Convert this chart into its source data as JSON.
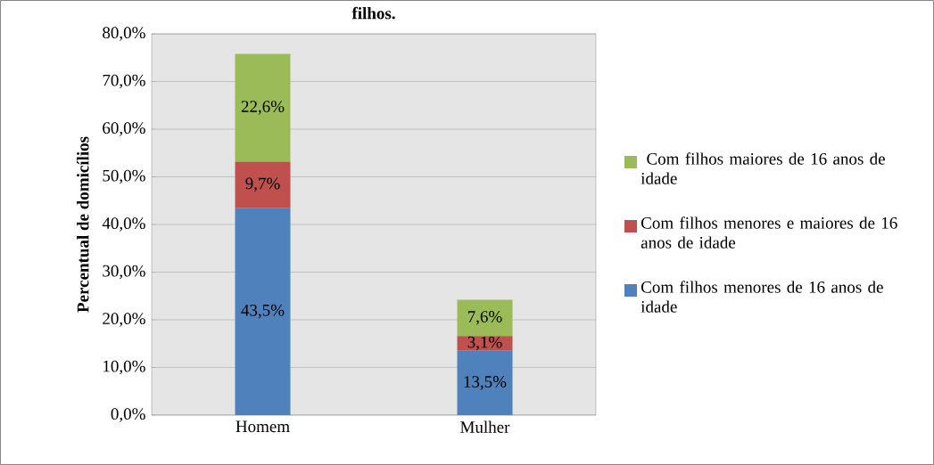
{
  "chart_data": {
    "type": "bar",
    "title": "filhos.",
    "ylabel": "Percentual de domicílios",
    "stacked": true,
    "categories": [
      "Homem",
      "Mulher"
    ],
    "series": [
      {
        "name": "Com filhos menores de 16 anos de idade",
        "color": "#4f81bd",
        "values": [
          43.5,
          13.5
        ],
        "value_labels": [
          "43,5%",
          "13,5%"
        ]
      },
      {
        "name": "Com filhos menores e maiores de 16 anos de idade",
        "color": "#c0504d",
        "values": [
          9.7,
          3.1
        ],
        "value_labels": [
          "9,7%",
          "3,1%"
        ]
      },
      {
        "name": " Com filhos maiores de 16 anos de idade",
        "color": "#9bbb59",
        "values": [
          22.6,
          7.6
        ],
        "value_labels": [
          "22,6%",
          "7,6%"
        ]
      }
    ],
    "ylim": [
      0,
      80
    ],
    "yticks": [
      {
        "value": 0,
        "label": "0,0%"
      },
      {
        "value": 10,
        "label": "10,0%"
      },
      {
        "value": 20,
        "label": "20,0%"
      },
      {
        "value": 30,
        "label": "30,0%"
      },
      {
        "value": 40,
        "label": "40,0%"
      },
      {
        "value": 50,
        "label": "50,0%"
      },
      {
        "value": 60,
        "label": "60,0%"
      },
      {
        "value": 70,
        "label": "70,0%"
      },
      {
        "value": 80,
        "label": "80,0%"
      }
    ],
    "grid": "y",
    "legend": "right"
  }
}
